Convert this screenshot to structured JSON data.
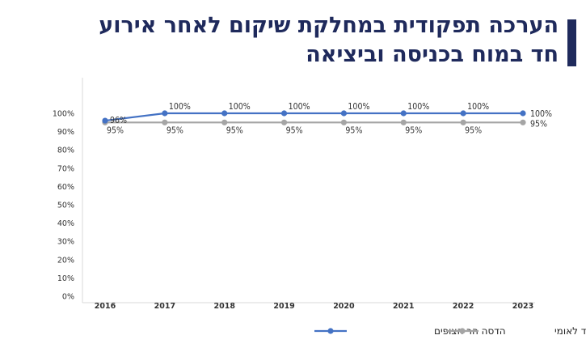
{
  "title_line1": "הערכה תפקודית במחלקת שיקום לאחר אירוע",
  "title_line2": "חד במוח בכניסה וביציאה",
  "colors": {
    "title": "#1f2a5c",
    "hospital": "#4472c4",
    "national": "#a5a5a5"
  },
  "chart_data": {
    "type": "line",
    "title": "הערכה תפקודית במחלקת שיקום לאחר אירוע חד במוח בכניסה וביציאה",
    "categories": [
      "2016",
      "2017",
      "2018",
      "2019",
      "2020",
      "2021",
      "2022",
      "2023"
    ],
    "y_ticks": [
      "0%",
      "10%",
      "20%",
      "30%",
      "40%",
      "50%",
      "60%",
      "70%",
      "80%",
      "90%",
      "100%"
    ],
    "ylim": [
      0,
      100
    ],
    "series": [
      {
        "name": "הדסה הר הצופים",
        "values": [
          96,
          100,
          100,
          100,
          100,
          100,
          100,
          100
        ],
        "labels": [
          "96%",
          "100%",
          "100%",
          "100%",
          "100%",
          "100%",
          "100%",
          "100%"
        ]
      },
      {
        "name": "יעד לאומי",
        "values": [
          95,
          95,
          95,
          95,
          95,
          95,
          95,
          95
        ],
        "labels": [
          "95%",
          "95%",
          "95%",
          "95%",
          "95%",
          "95%",
          "95%",
          "95%"
        ]
      }
    ],
    "legend_position": "bottom"
  }
}
